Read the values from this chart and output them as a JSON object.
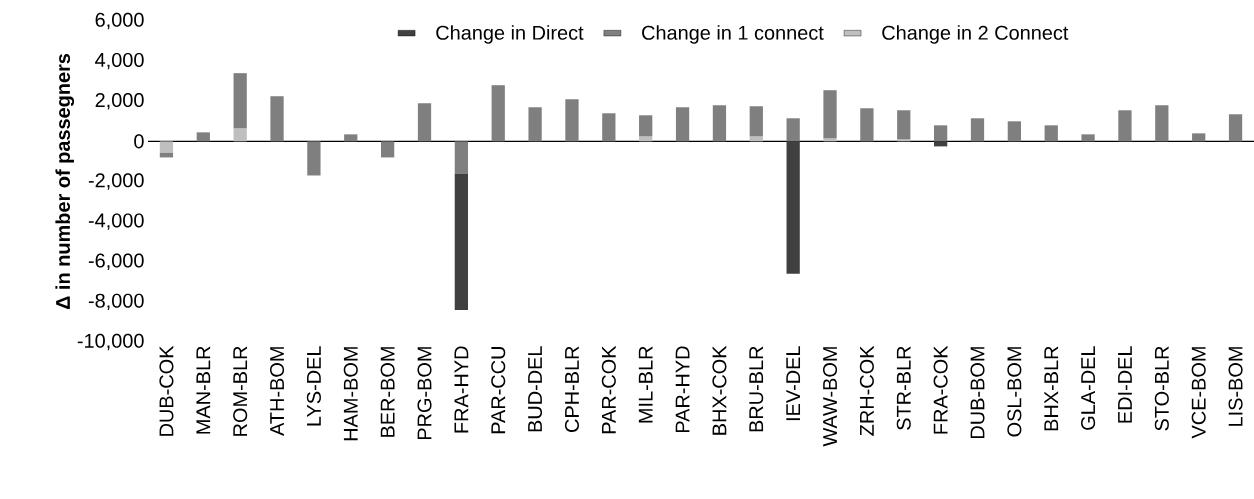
{
  "chart_data": {
    "type": "bar",
    "stacked": true,
    "ylabel": "Δ in number of passegners",
    "categories": [
      "DUB-COK",
      "MAN-BLR",
      "ROM-BLR",
      "ATH-BOM",
      "LYS-DEL",
      "HAM-BOM",
      "BER-BOM",
      "PRG-BOM",
      "FRA-HYD",
      "PAR-CCU",
      "BUD-DEL",
      "CPH-BLR",
      "PAR-COK",
      "MIL-BLR",
      "PAR-HYD",
      "BHX-COK",
      "BRU-BLR",
      "IEV-DEL",
      "WAW-BOM",
      "ZRH-COK",
      "STR-BLR",
      "FRA-COK",
      "DUB-BOM",
      "OSL-BOM",
      "BHX-BLR",
      "GLA-DEL",
      "EDI-DEL",
      "STO-BLR",
      "VCE-BOM",
      "LIS-BOM"
    ],
    "series": [
      {
        "name": "Change in 2 Connect",
        "color": "#bfbfbf",
        "values": [
          -570,
          0,
          650,
          0,
          0,
          0,
          0,
          0,
          0,
          0,
          0,
          0,
          0,
          250,
          0,
          0,
          250,
          0,
          150,
          0,
          100,
          0,
          0,
          0,
          0,
          0,
          0,
          0,
          0,
          0
        ]
      },
      {
        "name": "Change in 1 connect",
        "color": "#7f7f7f",
        "values": [
          -230,
          450,
          2750,
          2250,
          -1700,
          350,
          -800,
          1900,
          -1600,
          2800,
          1700,
          2100,
          1400,
          1050,
          1700,
          1800,
          1500,
          1150,
          2400,
          1650,
          1450,
          800,
          1150,
          1000,
          800,
          350,
          1550,
          1800,
          400,
          1350
        ]
      },
      {
        "name": "Change in Direct",
        "color": "#404040",
        "values": [
          0,
          0,
          0,
          0,
          0,
          0,
          0,
          0,
          -6800,
          0,
          0,
          0,
          0,
          0,
          0,
          0,
          0,
          -6600,
          0,
          0,
          0,
          -250,
          0,
          0,
          0,
          0,
          0,
          0,
          0,
          0
        ]
      }
    ],
    "ylim": [
      -10000,
      6000
    ],
    "yticks": [
      {
        "value": -10000,
        "label": "-10,000"
      },
      {
        "value": -8000,
        "label": "-8,000"
      },
      {
        "value": -6000,
        "label": "-6,000"
      },
      {
        "value": -4000,
        "label": "-4,000"
      },
      {
        "value": -2000,
        "label": "-2,000"
      },
      0,
      {
        "value": 2000,
        "label": "2,000"
      },
      {
        "value": 4000,
        "label": "4,000"
      },
      {
        "value": 6000,
        "label": "6,000"
      }
    ],
    "legend": "top"
  }
}
